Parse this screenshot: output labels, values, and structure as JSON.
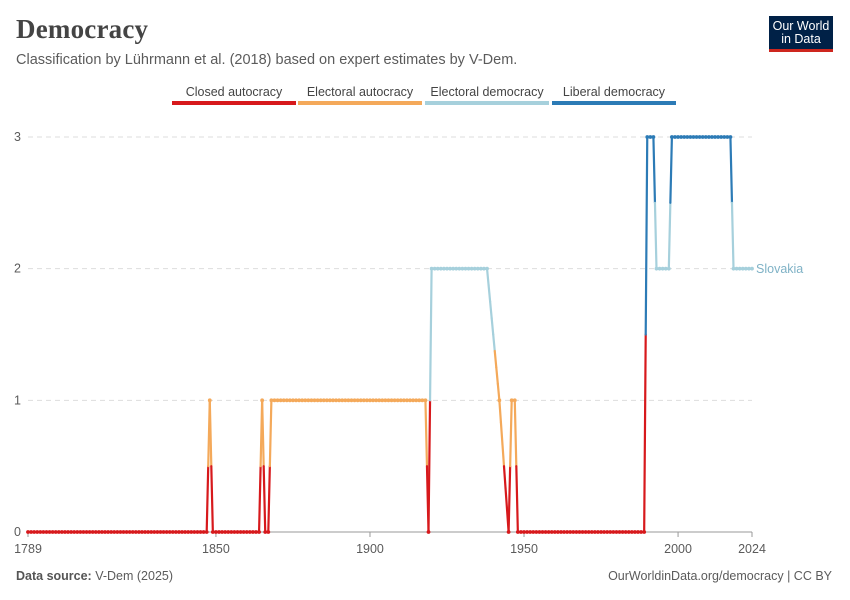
{
  "header": {
    "title": "Democracy",
    "subtitle": "Classification by Lührmann et al. (2018) based on expert estimates by V-Dem."
  },
  "logo": {
    "line1": "Our World",
    "line2": "in Data",
    "bg": "#002147",
    "accent": "#ce261e"
  },
  "footer": {
    "source_label": "Data source:",
    "source_value": "V-Dem (2025)",
    "url": "OurWorldinData.org/democracy | CC BY"
  },
  "chart_data": {
    "type": "line",
    "title": "Democracy",
    "entity": "Slovakia",
    "x_range": [
      1789,
      2024
    ],
    "ylim": [
      0,
      3
    ],
    "y_ticks": [
      0,
      1,
      2,
      3
    ],
    "x_ticks": [
      "1789",
      "1850",
      "1900",
      "1950",
      "2000",
      "2024"
    ],
    "x_tick_values": [
      1789,
      1850,
      1900,
      1950,
      2000,
      2024
    ],
    "legend": [
      {
        "label": "Closed autocracy",
        "value": 0,
        "color": "#d7191c"
      },
      {
        "label": "Electoral autocracy",
        "value": 1,
        "color": "#f4a95a"
      },
      {
        "label": "Electoral democracy",
        "value": 2,
        "color": "#a6d0dc"
      },
      {
        "label": "Liberal democracy",
        "value": 3,
        "color": "#2c7bb6"
      }
    ],
    "series_points": [
      [
        1789,
        0
      ],
      [
        1847,
        0
      ],
      [
        1848,
        1
      ],
      [
        1849,
        0
      ],
      [
        1864,
        0
      ],
      [
        1865,
        1
      ],
      [
        1866,
        0
      ],
      [
        1867,
        0
      ],
      [
        1868,
        1
      ],
      [
        1918,
        1
      ],
      [
        1919,
        0
      ],
      [
        1920,
        2
      ],
      [
        1938,
        2
      ],
      [
        1942,
        1
      ],
      [
        1945,
        0
      ],
      [
        1946,
        1
      ],
      [
        1947,
        1
      ],
      [
        1948,
        0
      ],
      [
        1989,
        0
      ],
      [
        1990,
        3
      ],
      [
        1992,
        3
      ],
      [
        1993,
        2
      ],
      [
        1997,
        2
      ],
      [
        1998,
        3
      ],
      [
        2017,
        3
      ],
      [
        2018,
        2
      ],
      [
        2024,
        2
      ]
    ],
    "gaps": [
      [
        1942,
        1945
      ],
      [
        1938,
        1942
      ]
    ]
  }
}
